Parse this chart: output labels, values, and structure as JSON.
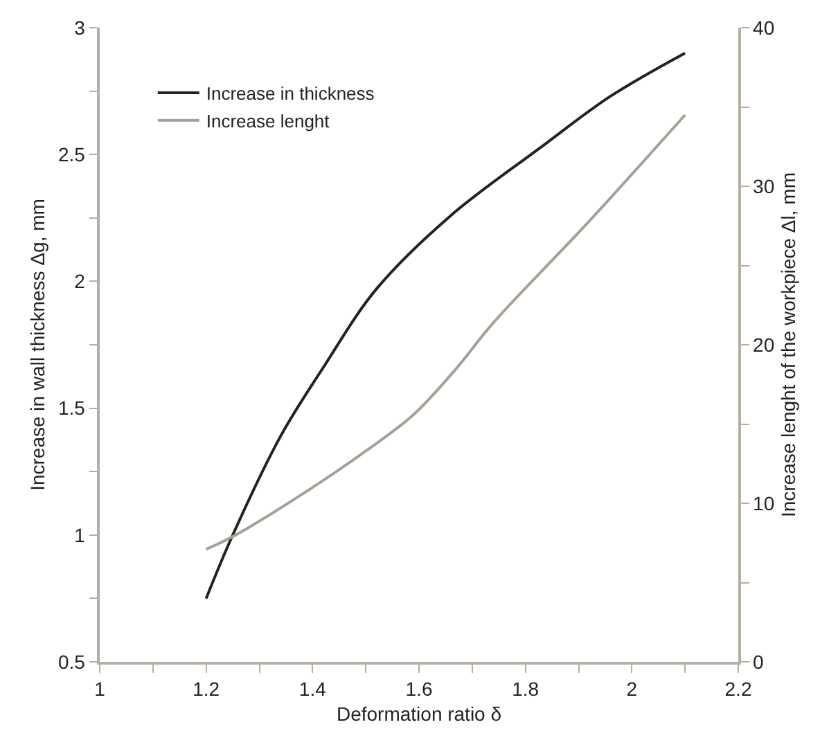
{
  "chart_data": {
    "type": "line",
    "xlabel": "Deformation ratio δ",
    "ylabel": "Increase in wall thickness Δg, mm",
    "y2label": "Increase lenght of the workpiece Δl, mm",
    "xlim": [
      1,
      2.2
    ],
    "xticks": [
      1,
      {
        "value": 1.1,
        "label": null
      },
      1.2,
      {
        "value": 1.3,
        "label": null
      },
      1.4,
      {
        "value": 1.5,
        "label": null
      },
      1.6,
      {
        "value": 1.7,
        "label": null
      },
      1.8,
      {
        "value": 1.9,
        "label": null
      },
      2,
      {
        "value": 2.1,
        "label": null
      },
      2.2
    ],
    "ylim": [
      0.5,
      3
    ],
    "yticks": [
      0.5,
      {
        "value": 0.75,
        "label": null
      },
      1,
      {
        "value": 1.25,
        "label": null
      },
      1.5,
      {
        "value": 1.75,
        "label": null
      },
      2,
      {
        "value": 2.25,
        "label": null
      },
      2.5,
      {
        "value": 2.75,
        "label": null
      },
      3
    ],
    "y2lim": [
      0,
      40
    ],
    "y2ticks": [
      0,
      {
        "value": 5,
        "label": null
      },
      10,
      {
        "value": 15,
        "label": null
      },
      20,
      {
        "value": 25,
        "label": null
      },
      30,
      {
        "value": 35,
        "label": null
      },
      40
    ],
    "legend": "top left",
    "marker": "none",
    "line_style": "solid",
    "series": [
      {
        "name": "Increase in thickness",
        "color": "#222222",
        "x": [
          1.2,
          1.25,
          1.34,
          1.42,
          1.52,
          1.66,
          1.83,
          1.96,
          2.1
        ],
        "values": [
          0.75,
          1.0,
          1.39,
          1.66,
          1.97,
          2.26,
          2.53,
          2.73,
          2.9
        ]
      },
      {
        "name": "Increase lenght",
        "color": "#a89f96",
        "axis": "y2",
        "x": [
          1.2,
          1.25,
          1.4,
          1.5,
          1.59,
          1.67,
          1.74,
          1.92,
          2.1
        ],
        "values": [
          7.1,
          7.9,
          11.0,
          13.3,
          15.6,
          18.5,
          21.4,
          27.8,
          34.5
        ]
      }
    ]
  }
}
